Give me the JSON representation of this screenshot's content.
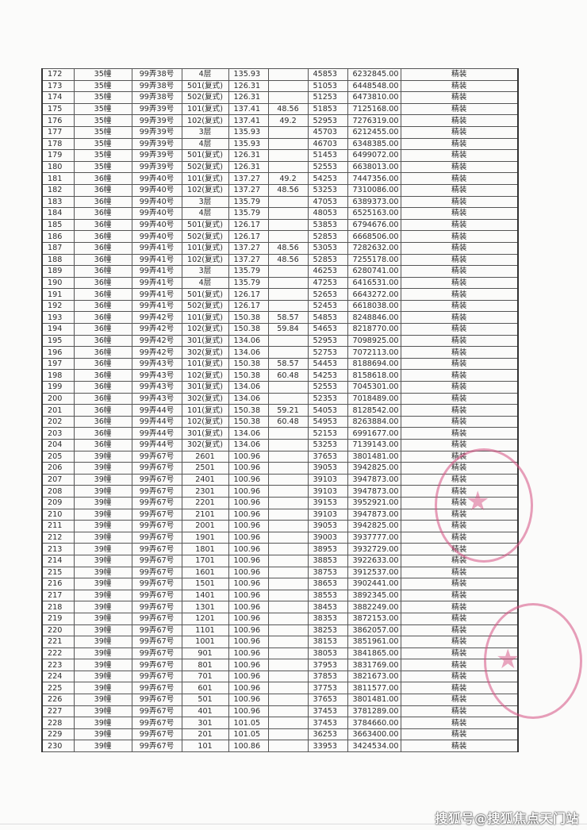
{
  "table": {
    "rows": [
      [
        "172",
        "35幢",
        "99弄38号",
        "4层",
        "135.93",
        "",
        "45853",
        "6232845.00",
        "精装"
      ],
      [
        "173",
        "35幢",
        "99弄38号",
        "501(复式)",
        "126.31",
        "",
        "51053",
        "6448548.00",
        "精装"
      ],
      [
        "174",
        "35幢",
        "99弄38号",
        "502(复式)",
        "126.31",
        "",
        "51253",
        "6473810.00",
        "精装"
      ],
      [
        "175",
        "35幢",
        "99弄39号",
        "101(复式)",
        "137.41",
        "48.56",
        "51853",
        "7125168.00",
        "精装"
      ],
      [
        "176",
        "35幢",
        "99弄39号",
        "102(复式)",
        "137.41",
        "49.2",
        "52953",
        "7276319.00",
        "精装"
      ],
      [
        "177",
        "35幢",
        "99弄39号",
        "3层",
        "135.93",
        "",
        "45703",
        "6212455.00",
        "精装"
      ],
      [
        "178",
        "35幢",
        "99弄39号",
        "4层",
        "135.93",
        "",
        "46703",
        "6348385.00",
        "精装"
      ],
      [
        "179",
        "35幢",
        "99弄39号",
        "501(复式)",
        "126.31",
        "",
        "51453",
        "6499072.00",
        "精装"
      ],
      [
        "180",
        "35幢",
        "99弄39号",
        "502(复式)",
        "126.31",
        "",
        "52553",
        "6638013.00",
        "精装"
      ],
      [
        "181",
        "36幢",
        "99弄40号",
        "101(复式)",
        "137.27",
        "49.2",
        "54253",
        "7447356.00",
        "精装"
      ],
      [
        "182",
        "36幢",
        "99弄40号",
        "102(复式)",
        "137.27",
        "48.56",
        "53253",
        "7310086.00",
        "精装"
      ],
      [
        "183",
        "36幢",
        "99弄40号",
        "3层",
        "135.79",
        "",
        "47053",
        "6389373.00",
        "精装"
      ],
      [
        "184",
        "36幢",
        "99弄40号",
        "4层",
        "135.79",
        "",
        "48053",
        "6525163.00",
        "精装"
      ],
      [
        "185",
        "36幢",
        "99弄40号",
        "501(复式)",
        "126.17",
        "",
        "53853",
        "6794676.00",
        "精装"
      ],
      [
        "186",
        "36幢",
        "99弄40号",
        "502(复式)",
        "126.17",
        "",
        "52853",
        "6668506.00",
        "精装"
      ],
      [
        "187",
        "36幢",
        "99弄41号",
        "101(复式)",
        "137.27",
        "48.56",
        "53053",
        "7282632.00",
        "精装"
      ],
      [
        "188",
        "36幢",
        "99弄41号",
        "102(复式)",
        "137.27",
        "48.56",
        "52853",
        "7255178.00",
        "精装"
      ],
      [
        "189",
        "36幢",
        "99弄41号",
        "3层",
        "135.79",
        "",
        "46253",
        "6280741.00",
        "精装"
      ],
      [
        "190",
        "36幢",
        "99弄41号",
        "4层",
        "135.79",
        "",
        "47253",
        "6416531.00",
        "精装"
      ],
      [
        "191",
        "36幢",
        "99弄41号",
        "501(复式)",
        "126.17",
        "",
        "52653",
        "6643272.00",
        "精装"
      ],
      [
        "192",
        "36幢",
        "99弄41号",
        "502(复式)",
        "126.17",
        "",
        "52453",
        "6618038.00",
        "精装"
      ],
      [
        "193",
        "36幢",
        "99弄42号",
        "101(复式)",
        "150.38",
        "58.57",
        "54853",
        "8248846.00",
        "精装"
      ],
      [
        "194",
        "36幢",
        "99弄42号",
        "102(复式)",
        "150.38",
        "59.84",
        "54653",
        "8218770.00",
        "精装"
      ],
      [
        "195",
        "36幢",
        "99弄42号",
        "301(复式)",
        "134.06",
        "",
        "52953",
        "7098925.00",
        "精装"
      ],
      [
        "196",
        "36幢",
        "99弄42号",
        "302(复式)",
        "134.06",
        "",
        "52753",
        "7072113.00",
        "精装"
      ],
      [
        "197",
        "36幢",
        "99弄43号",
        "101(复式)",
        "150.38",
        "58.57",
        "54453",
        "8188694.00",
        "精装"
      ],
      [
        "198",
        "36幢",
        "99弄43号",
        "102(复式)",
        "150.38",
        "60.48",
        "54253",
        "8158618.00",
        "精装"
      ],
      [
        "199",
        "36幢",
        "99弄43号",
        "301(复式)",
        "134.06",
        "",
        "52553",
        "7045301.00",
        "精装"
      ],
      [
        "200",
        "36幢",
        "99弄43号",
        "302(复式)",
        "134.06",
        "",
        "52353",
        "7018489.00",
        "精装"
      ],
      [
        "201",
        "36幢",
        "99弄44号",
        "101(复式)",
        "150.38",
        "59.21",
        "54053",
        "8128542.00",
        "精装"
      ],
      [
        "202",
        "36幢",
        "99弄44号",
        "102(复式)",
        "150.38",
        "60.48",
        "54953",
        "8263884.00",
        "精装"
      ],
      [
        "203",
        "36幢",
        "99弄44号",
        "301(复式)",
        "134.06",
        "",
        "52153",
        "6991677.00",
        "精装"
      ],
      [
        "204",
        "36幢",
        "99弄44号",
        "302(复式)",
        "134.06",
        "",
        "53253",
        "7139143.00",
        "精装"
      ],
      [
        "205",
        "39幢",
        "99弄67号",
        "2601",
        "100.96",
        "",
        "37653",
        "3801481.00",
        "精装"
      ],
      [
        "206",
        "39幢",
        "99弄67号",
        "2501",
        "100.96",
        "",
        "39053",
        "3942825.00",
        "精装"
      ],
      [
        "207",
        "39幢",
        "99弄67号",
        "2401",
        "100.96",
        "",
        "39103",
        "3947873.00",
        "精装"
      ],
      [
        "208",
        "39幢",
        "99弄67号",
        "2301",
        "100.96",
        "",
        "39103",
        "3947873.00",
        "精装"
      ],
      [
        "209",
        "39幢",
        "99弄67号",
        "2201",
        "100.96",
        "",
        "39153",
        "3952921.00",
        "精装"
      ],
      [
        "210",
        "39幢",
        "99弄67号",
        "2101",
        "100.96",
        "",
        "39103",
        "3947873.00",
        "精装"
      ],
      [
        "211",
        "39幢",
        "99弄67号",
        "2001",
        "100.96",
        "",
        "39053",
        "3942825.00",
        "精装"
      ],
      [
        "212",
        "39幢",
        "99弄67号",
        "1901",
        "100.96",
        "",
        "39003",
        "3937777.00",
        "精装"
      ],
      [
        "213",
        "39幢",
        "99弄67号",
        "1801",
        "100.96",
        "",
        "38953",
        "3932729.00",
        "精装"
      ],
      [
        "214",
        "39幢",
        "99弄67号",
        "1701",
        "100.96",
        "",
        "38853",
        "3922633.00",
        "精装"
      ],
      [
        "215",
        "39幢",
        "99弄67号",
        "1601",
        "100.96",
        "",
        "38753",
        "3912537.00",
        "精装"
      ],
      [
        "216",
        "39幢",
        "99弄67号",
        "1501",
        "100.96",
        "",
        "38653",
        "3902441.00",
        "精装"
      ],
      [
        "217",
        "39幢",
        "99弄67号",
        "1401",
        "100.96",
        "",
        "38553",
        "3892345.00",
        "精装"
      ],
      [
        "218",
        "39幢",
        "99弄67号",
        "1301",
        "100.96",
        "",
        "38453",
        "3882249.00",
        "精装"
      ],
      [
        "219",
        "39幢",
        "99弄67号",
        "1201",
        "100.96",
        "",
        "38353",
        "3872153.00",
        "精装"
      ],
      [
        "220",
        "39幢",
        "99弄67号",
        "1101",
        "100.96",
        "",
        "38253",
        "3862057.00",
        "精装"
      ],
      [
        "221",
        "39幢",
        "99弄67号",
        "1001",
        "100.96",
        "",
        "38153",
        "3851961.00",
        "精装"
      ],
      [
        "222",
        "39幢",
        "99弄67号",
        "901",
        "100.96",
        "",
        "38053",
        "3841865.00",
        "精装"
      ],
      [
        "223",
        "39幢",
        "99弄67号",
        "801",
        "100.96",
        "",
        "37953",
        "3831769.00",
        "精装"
      ],
      [
        "224",
        "39幢",
        "99弄67号",
        "701",
        "100.96",
        "",
        "37853",
        "3821673.00",
        "精装"
      ],
      [
        "225",
        "39幢",
        "99弄67号",
        "601",
        "100.96",
        "",
        "37753",
        "3811577.00",
        "精装"
      ],
      [
        "226",
        "39幢",
        "99弄67号",
        "501",
        "100.96",
        "",
        "37653",
        "3801481.00",
        "精装"
      ],
      [
        "227",
        "39幢",
        "99弄67号",
        "401",
        "100.96",
        "",
        "37453",
        "3781289.00",
        "精装"
      ],
      [
        "228",
        "39幢",
        "99弄67号",
        "301",
        "101.05",
        "",
        "37453",
        "3784660.00",
        "精装"
      ],
      [
        "229",
        "39幢",
        "99弄67号",
        "201",
        "101.05",
        "",
        "36253",
        "3663400.00",
        "精装"
      ],
      [
        "230",
        "39幢",
        "99弄67号",
        "101",
        "100.86",
        "",
        "33953",
        "3424534.00",
        "精装"
      ]
    ]
  },
  "stamp_color": "#d65082",
  "watermark": "搜狐号@搜狐焦点天门站"
}
